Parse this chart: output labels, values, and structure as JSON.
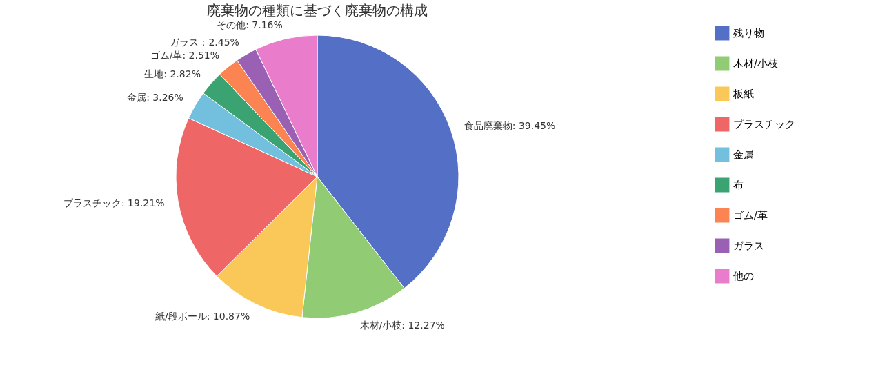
{
  "chart_data": {
    "type": "pie",
    "title": "廃棄物の種類に基づく廃棄物の構成",
    "categories": [
      "残り物",
      "木材/小枝",
      "板紙",
      "プラスチック",
      "金属",
      "布",
      "ゴム/革",
      "ガラス",
      "他の"
    ],
    "values": [
      39.45,
      12.27,
      10.87,
      19.21,
      3.26,
      2.82,
      2.51,
      2.45,
      7.16
    ],
    "colors": [
      "#5470c6",
      "#91cc75",
      "#fac858",
      "#ee6666",
      "#73c0de",
      "#3ba272",
      "#fc8452",
      "#9a60b4",
      "#ea7ccc"
    ],
    "value_labels": [
      "食品廃棄物: 39.45%",
      "木材/小枝: 12.27%",
      "紙/段ボール: 10.87%",
      "プラスチック: 19.21%",
      "金属: 3.26%",
      "生地: 2.82%",
      "ゴム/革: 2.51%",
      "ガラス：2.45%",
      "その他: 7.16%"
    ],
    "legend": "right"
  }
}
